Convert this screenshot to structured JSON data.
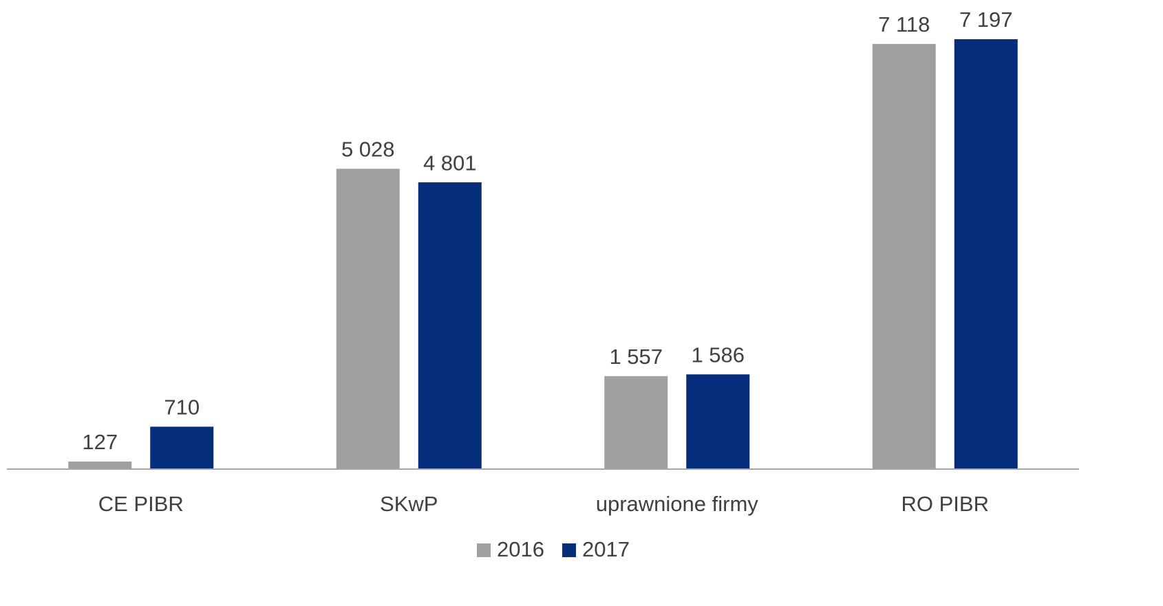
{
  "chart_data": {
    "type": "bar",
    "categories": [
      "CE PIBR",
      "SKwP",
      "uprawnione firmy",
      "RO PIBR"
    ],
    "series": [
      {
        "name": "2016",
        "color": "#a0a0a0",
        "values": [
          127,
          5028,
          1557,
          7118
        ],
        "value_labels": [
          "127",
          "5 028",
          "1 557",
          "7 118"
        ]
      },
      {
        "name": "2017",
        "color": "#062d7c",
        "values": [
          710,
          4801,
          1586,
          7197
        ],
        "value_labels": [
          "710",
          "4 801",
          "1 586",
          "7 197"
        ]
      }
    ],
    "legend": "bottom"
  }
}
